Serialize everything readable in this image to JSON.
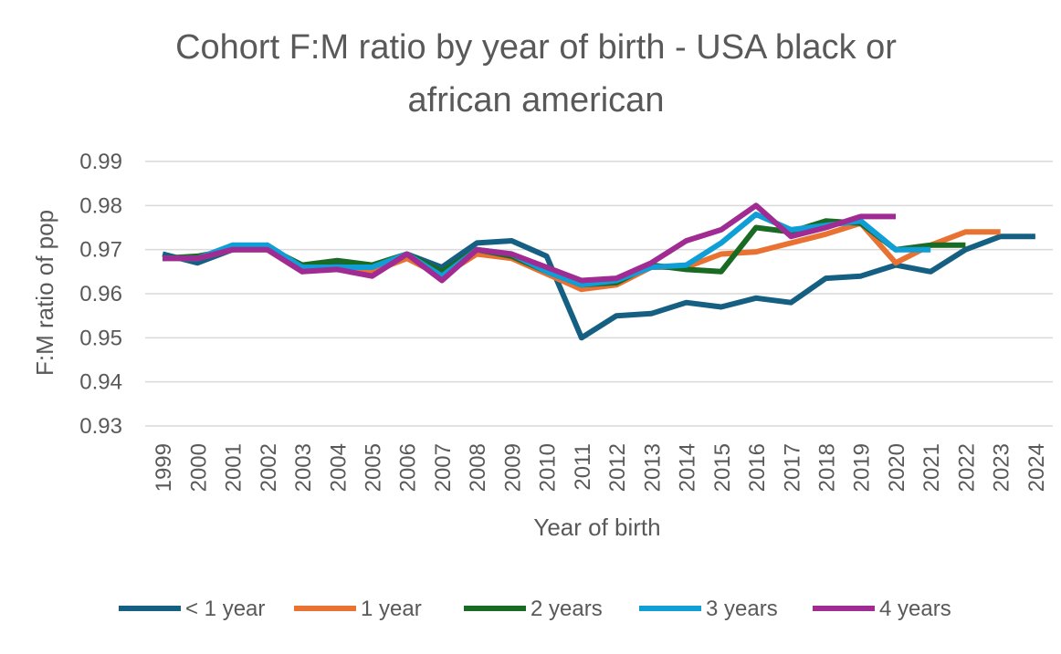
{
  "chart_data": {
    "type": "line",
    "title_lines": [
      "Cohort F:M ratio by year of birth - USA black or",
      "african american"
    ],
    "xlabel": "Year of birth",
    "ylabel": "F:M ratio of pop",
    "ylim": [
      0.93,
      0.99
    ],
    "y_ticks": [
      "0.93",
      "0.94",
      "0.95",
      "0.96",
      "0.97",
      "0.98",
      "0.99"
    ],
    "y_tick_values": [
      0.93,
      0.94,
      0.95,
      0.96,
      0.97,
      0.98,
      0.99
    ],
    "grid": "horizontal",
    "legend_position": "bottom",
    "categories": [
      "1999",
      "2000",
      "2001",
      "2002",
      "2003",
      "2004",
      "2005",
      "2006",
      "2007",
      "2008",
      "2009",
      "2010",
      "2011",
      "2012",
      "2013",
      "2014",
      "2015",
      "2016",
      "2017",
      "2018",
      "2019",
      "2020",
      "2021",
      "2022",
      "2023",
      "2024"
    ],
    "series": [
      {
        "name": "< 1 year",
        "color": "#156082",
        "values": [
          0.969,
          0.967,
          0.97,
          0.971,
          0.966,
          0.967,
          0.966,
          0.969,
          0.966,
          0.9715,
          0.972,
          0.9685,
          0.95,
          0.955,
          0.9555,
          0.958,
          0.957,
          0.959,
          0.958,
          0.9635,
          0.964,
          0.9665,
          0.965,
          0.97,
          0.973,
          0.973
        ]
      },
      {
        "name": "1 year",
        "color": "#E97132",
        "values": [
          0.968,
          0.968,
          0.97,
          0.97,
          0.965,
          0.966,
          0.965,
          0.968,
          0.964,
          0.969,
          0.968,
          0.9645,
          0.961,
          0.962,
          0.966,
          0.966,
          0.969,
          0.9695,
          0.9715,
          0.9735,
          0.976,
          0.967,
          0.971,
          0.974,
          0.974,
          null
        ]
      },
      {
        "name": "2 years",
        "color": "#196B24",
        "values": [
          0.968,
          0.9685,
          0.97,
          0.9705,
          0.9665,
          0.9675,
          0.9665,
          0.969,
          0.965,
          0.97,
          0.9685,
          0.965,
          0.962,
          0.9625,
          0.9665,
          0.9655,
          0.965,
          0.975,
          0.974,
          0.9765,
          0.976,
          0.97,
          0.971,
          0.971,
          null,
          null
        ]
      },
      {
        "name": "3 years",
        "color": "#0F9ED5",
        "values": [
          0.968,
          0.968,
          0.971,
          0.971,
          0.966,
          0.966,
          0.966,
          0.969,
          0.964,
          0.97,
          0.969,
          0.965,
          0.962,
          0.963,
          0.966,
          0.9665,
          0.9715,
          0.978,
          0.9745,
          0.9755,
          0.9765,
          0.97,
          0.97,
          null,
          null,
          null
        ]
      },
      {
        "name": "4 years",
        "color": "#A02B93",
        "values": [
          0.968,
          0.968,
          0.97,
          0.97,
          0.965,
          0.9655,
          0.964,
          0.969,
          0.963,
          0.97,
          0.969,
          0.966,
          0.963,
          0.9635,
          0.967,
          0.972,
          0.9745,
          0.98,
          0.973,
          0.975,
          0.9775,
          0.9775,
          null,
          null,
          null,
          null
        ]
      }
    ]
  }
}
